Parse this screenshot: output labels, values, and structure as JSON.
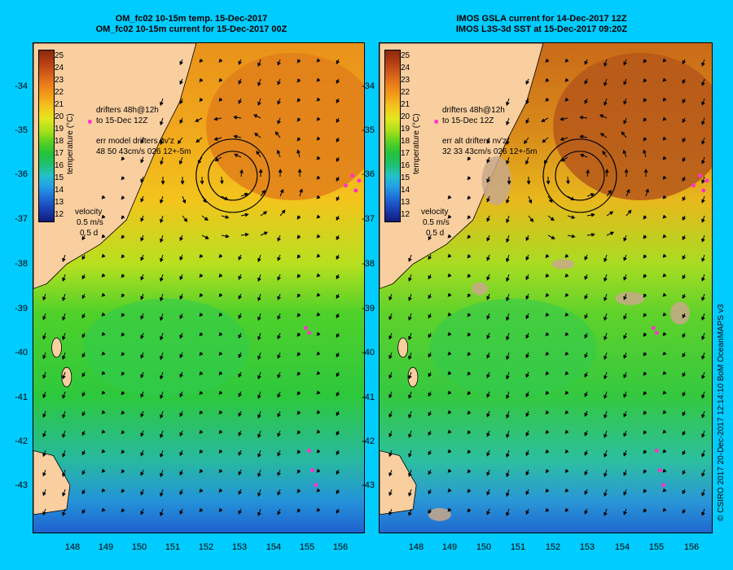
{
  "left_panel": {
    "title_line1": "OM_fc02 10-15m temp. 15-Dec-2017",
    "title_line2": "OM_fc02 10-15m current for 15-Dec-2017 00Z",
    "drifters_line1": "drifters 48h@12h",
    "drifters_line2": "to 15-Dec 12Z",
    "err_line1": "err model drifters nv'z",
    "err_line2": "48 50 43cm/s 026 12+-5m"
  },
  "right_panel": {
    "title_line1": "IMOS GSLA current for 14-Dec-2017 12Z",
    "title_line2": "IMOS L3S-3d SST at 15-Dec-2017 09:20Z",
    "drifters_line1": "drifters 48h@12h",
    "drifters_line2": "to 15-Dec 12Z",
    "err_line1": "err alt drifters nv'z",
    "err_line2": "32 33 43cm/s 026 12+-5m"
  },
  "velocity_legend": {
    "label": "velocity",
    "speed": "0.5 m/s",
    "duration": "0.5 d"
  },
  "colorbar": {
    "unit_label": "temperature (°C)",
    "ticks": [
      "25",
      "24",
      "23",
      "22",
      "21",
      "20",
      "19",
      "18",
      "17",
      "16",
      "15",
      "14",
      "13",
      "12"
    ]
  },
  "axes": {
    "lat_labels": [
      "-34",
      "-35",
      "-36",
      "-37",
      "-38",
      "-39",
      "-40",
      "-41",
      "-42",
      "-43"
    ],
    "lon_labels": [
      "148",
      "149",
      "150",
      "151",
      "152",
      "153",
      "154",
      "155",
      "156"
    ]
  },
  "credit": "© CSIRO 2017   20-Dec-2017 12:14:10 BoM OceanMAPS v3",
  "colors": {
    "background": "#00ccff",
    "land": "#f9cfa0",
    "warm": "#e88a1a",
    "cool": "#2ecc3a",
    "cold": "#1f6ed6",
    "drifter": "#ff33cc",
    "cloud_mask": "#c8a88a"
  }
}
